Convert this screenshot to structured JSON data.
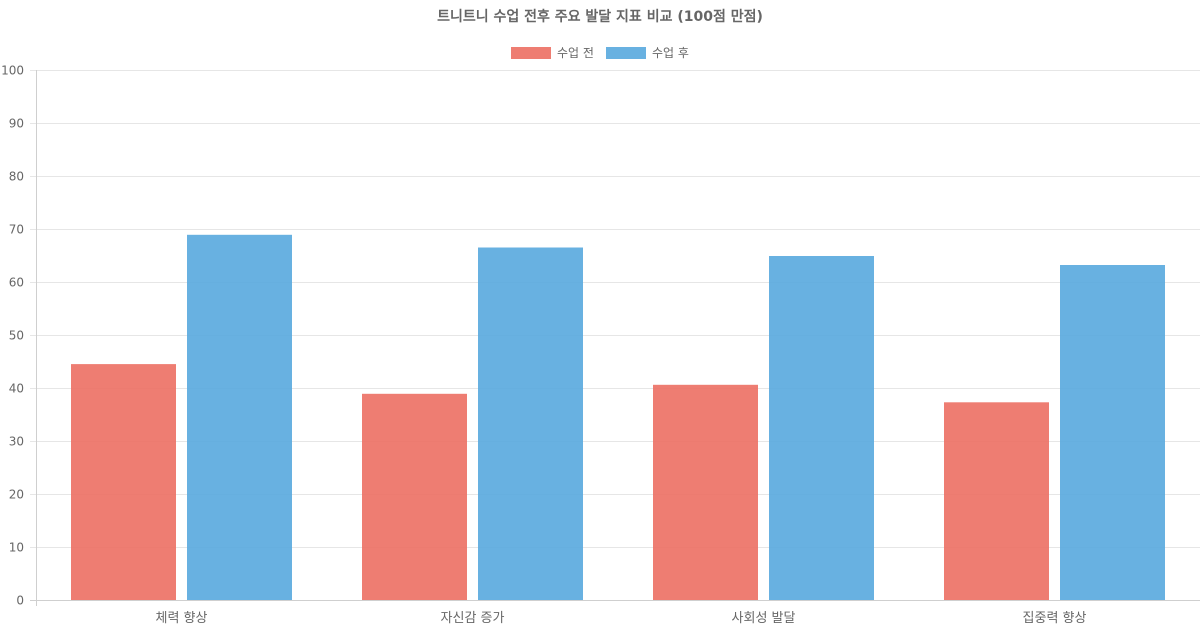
{
  "chart_data": {
    "type": "bar",
    "title": "트니트니 수업 전후 주요 발달 지표 비교 (100점 만점)",
    "categories": [
      "체력 향상",
      "자신감 증가",
      "사회성 발달",
      "집중력 향상"
    ],
    "series": [
      {
        "name": "수업 전",
        "values": [
          44.5,
          38.9,
          40.6,
          37.3
        ],
        "color": "#ec6f63"
      },
      {
        "name": "수업 후",
        "values": [
          68.9,
          66.5,
          64.9,
          63.2
        ],
        "color": "#58a9de"
      }
    ],
    "ylim": [
      0,
      100
    ],
    "yticks": [
      0,
      10,
      20,
      30,
      40,
      50,
      60,
      70,
      80,
      90,
      100
    ],
    "grid": true,
    "legend_position": "top-center"
  }
}
